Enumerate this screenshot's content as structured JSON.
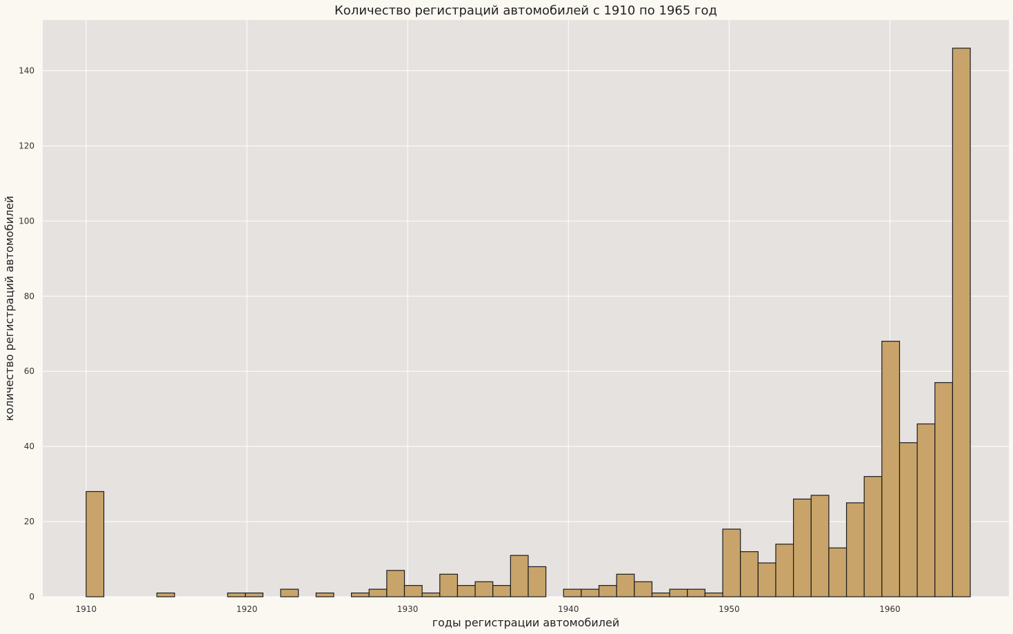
{
  "chart_data": {
    "type": "bar",
    "title": "Количество регистраций автомобилей с 1910 по 1965 год",
    "xlabel": "годы регистрации автомобилей",
    "ylabel": "количество регистраций автомобилей",
    "xlim": [
      1907.3,
      1967.4
    ],
    "ylim": [
      0,
      153.5
    ],
    "xticks": [
      1910,
      1920,
      1930,
      1940,
      1950,
      1960
    ],
    "yticks": [
      0,
      20,
      40,
      60,
      80,
      100,
      120,
      140
    ],
    "grid": true,
    "colors": {
      "bar": "#c9a46a",
      "plot_bg": "#e6e2e0",
      "page_bg": "#fbf8f2"
    },
    "bins": [
      {
        "start": 1910.0,
        "end": 1911.1,
        "value": 28
      },
      {
        "start": 1914.4,
        "end": 1915.5,
        "value": 1
      },
      {
        "start": 1918.8,
        "end": 1919.9,
        "value": 1
      },
      {
        "start": 1919.9,
        "end": 1921.0,
        "value": 1
      },
      {
        "start": 1922.1,
        "end": 1923.2,
        "value": 2
      },
      {
        "start": 1924.3,
        "end": 1925.4,
        "value": 1
      },
      {
        "start": 1926.5,
        "end": 1927.6,
        "value": 1
      },
      {
        "start": 1927.6,
        "end": 1928.7,
        "value": 2
      },
      {
        "start": 1928.7,
        "end": 1929.8,
        "value": 7
      },
      {
        "start": 1929.8,
        "end": 1930.9,
        "value": 3
      },
      {
        "start": 1930.9,
        "end": 1932.0,
        "value": 1
      },
      {
        "start": 1932.0,
        "end": 1933.1,
        "value": 6
      },
      {
        "start": 1933.1,
        "end": 1934.2,
        "value": 3
      },
      {
        "start": 1934.2,
        "end": 1935.3,
        "value": 4
      },
      {
        "start": 1935.3,
        "end": 1936.4,
        "value": 3
      },
      {
        "start": 1936.4,
        "end": 1937.5,
        "value": 11
      },
      {
        "start": 1937.5,
        "end": 1938.6,
        "value": 8
      },
      {
        "start": 1939.7,
        "end": 1940.8,
        "value": 2
      },
      {
        "start": 1940.8,
        "end": 1941.9,
        "value": 2
      },
      {
        "start": 1941.9,
        "end": 1943.0,
        "value": 3
      },
      {
        "start": 1943.0,
        "end": 1944.1,
        "value": 6
      },
      {
        "start": 1944.1,
        "end": 1945.2,
        "value": 4
      },
      {
        "start": 1945.2,
        "end": 1946.3,
        "value": 1
      },
      {
        "start": 1946.3,
        "end": 1947.4,
        "value": 2
      },
      {
        "start": 1947.4,
        "end": 1948.5,
        "value": 2
      },
      {
        "start": 1948.5,
        "end": 1949.6,
        "value": 1
      },
      {
        "start": 1949.6,
        "end": 1950.7,
        "value": 18
      },
      {
        "start": 1950.7,
        "end": 1951.8,
        "value": 12
      },
      {
        "start": 1951.8,
        "end": 1952.9,
        "value": 9
      },
      {
        "start": 1952.9,
        "end": 1954.0,
        "value": 14
      },
      {
        "start": 1954.0,
        "end": 1955.1,
        "value": 26
      },
      {
        "start": 1955.1,
        "end": 1956.2,
        "value": 27
      },
      {
        "start": 1956.2,
        "end": 1957.3,
        "value": 13
      },
      {
        "start": 1957.3,
        "end": 1958.4,
        "value": 25
      },
      {
        "start": 1958.4,
        "end": 1959.5,
        "value": 32
      },
      {
        "start": 1959.5,
        "end": 1960.6,
        "value": 68
      },
      {
        "start": 1960.6,
        "end": 1961.7,
        "value": 41
      },
      {
        "start": 1961.7,
        "end": 1962.8,
        "value": 46
      },
      {
        "start": 1962.8,
        "end": 1963.9,
        "value": 57
      },
      {
        "start": 1963.9,
        "end": 1965.0,
        "value": 146
      }
    ]
  }
}
